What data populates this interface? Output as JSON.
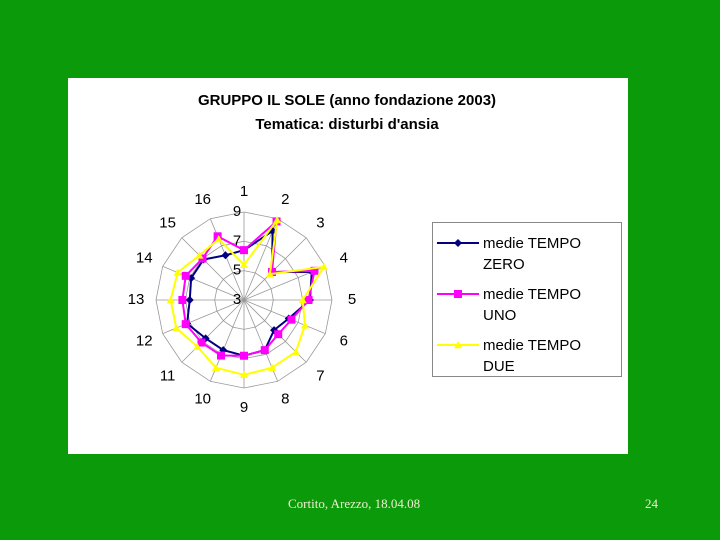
{
  "chart_data": {
    "type": "radar",
    "title": "GRUPPO IL SOLE (anno fondazione 2003)",
    "subtitle": "Tematica: disturbi d'ansia",
    "categories": [
      "1",
      "2",
      "3",
      "4",
      "5",
      "6",
      "7",
      "8",
      "9",
      "10",
      "11",
      "12",
      "13",
      "14",
      "15",
      "16"
    ],
    "rlim": [
      3,
      9
    ],
    "rticks": [
      3,
      5,
      7,
      9
    ],
    "grid": true,
    "legend": "right",
    "series": [
      {
        "name": "medie TEMPO ZERO",
        "color": "#000080",
        "marker": "diamond",
        "values": [
          6.4,
          8.1,
          5.7,
          8.0,
          7.5,
          6.3,
          5.9,
          6.7,
          6.8,
          6.7,
          6.7,
          7.2,
          6.7,
          6.9,
          6.9,
          6.3
        ]
      },
      {
        "name": "medie TEMPO UNO",
        "color": "#ff00ff",
        "marker": "square",
        "values": [
          6.4,
          8.8,
          5.7,
          8.2,
          7.4,
          6.5,
          6.3,
          6.7,
          6.8,
          7.1,
          7.1,
          7.3,
          7.2,
          7.3,
          7.0,
          7.7
        ]
      },
      {
        "name": "medie TEMPO DUE",
        "color": "#ffff00",
        "marker": "triangle",
        "values": [
          5.4,
          8.9,
          5.5,
          8.9,
          7.0,
          7.5,
          8.0,
          8.0,
          8.1,
          8.0,
          7.5,
          8.0,
          8.0,
          7.9,
          7.3,
          7.5
        ]
      }
    ]
  },
  "footer": {
    "text": "Cortito, Arezzo, 18.04.08",
    "page": "24"
  }
}
